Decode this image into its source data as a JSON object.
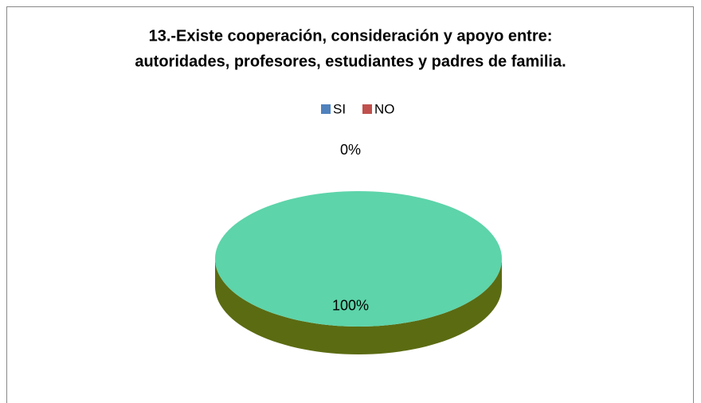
{
  "chart_data": {
    "type": "pie",
    "title": [
      "13.-Existe cooperación, consideración y apoyo entre:",
      "autoridades, profesores, estudiantes y padres de familia."
    ],
    "categories": [
      "SI",
      "NO"
    ],
    "values": [
      100,
      0
    ],
    "value_labels": [
      "100%",
      "0%"
    ],
    "colors": [
      "#4f81bd",
      "#c0504d"
    ],
    "slice_colors": [
      "#5dd4aa",
      "#c0504d"
    ],
    "side_colors": [
      "#5b6b12",
      "#8c3a38"
    ],
    "legend": "top"
  }
}
